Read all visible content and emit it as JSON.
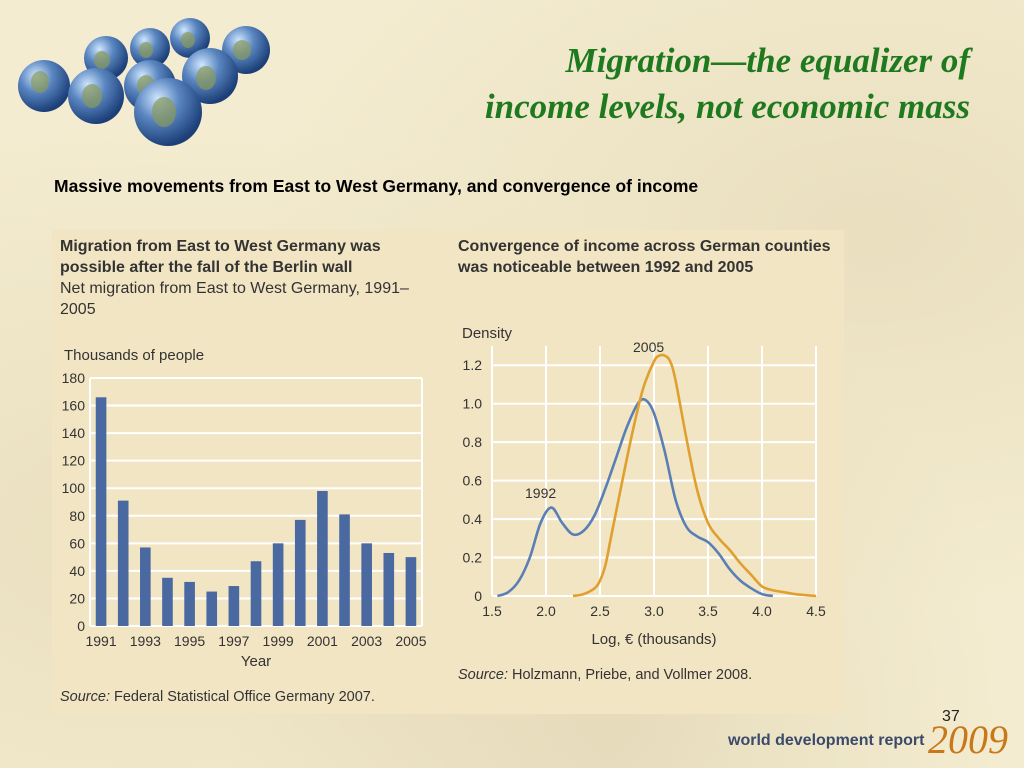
{
  "slide": {
    "title_line1": "Migration—the equalizer of",
    "title_line2": "income levels, not economic mass",
    "subtitle": "Massive movements from East to West Germany, and convergence of income",
    "page_number": "37",
    "footer_text": "world development report",
    "footer_year": "2009"
  },
  "left_panel": {
    "heading": "Migration from East to West Germany was possible after the fall of the Berlin wall",
    "subheading": "Net migration from East to West Germany, 1991–2005",
    "source_label": "Source:",
    "source_text": "Federal Statistical Office Germany 2007."
  },
  "right_panel": {
    "heading": "Convergence of income across German counties was noticeable between 1992 and 2005",
    "source_label": "Source:",
    "source_text": "Holzmann, Priebe, and Vollmer 2008."
  },
  "colors": {
    "bar": "#4a69a0",
    "line_1992": "#5a7fb5",
    "line_2005": "#e0a030",
    "title": "#1f7a1f"
  },
  "chart_data": [
    {
      "type": "bar",
      "ylabel": "Thousands of people",
      "xlabel": "Year",
      "categories": [
        "1991",
        "1992",
        "1993",
        "1994",
        "1995",
        "1996",
        "1997",
        "1998",
        "1999",
        "2000",
        "2001",
        "2002",
        "2003",
        "2004",
        "2005"
      ],
      "values": [
        166,
        91,
        57,
        35,
        32,
        25,
        29,
        47,
        60,
        77,
        98,
        81,
        60,
        53,
        50
      ],
      "x_tick_labels": [
        "1991",
        "1993",
        "1995",
        "1997",
        "1999",
        "2001",
        "2003",
        "2005"
      ],
      "y_ticks": [
        "0",
        "20",
        "40",
        "60",
        "80",
        "100",
        "120",
        "140",
        "160",
        "180"
      ],
      "ylim": [
        0,
        180
      ],
      "grid": true
    },
    {
      "type": "line",
      "ylabel": "Density",
      "xlabel": "Log, € (thousands)",
      "xlim": [
        1.5,
        4.5
      ],
      "ylim": [
        0,
        1.3
      ],
      "x_ticks": [
        "1.5",
        "2.0",
        "2.5",
        "3.0",
        "3.5",
        "4.0",
        "4.5"
      ],
      "y_ticks": [
        "0",
        "0.2",
        "0.4",
        "0.6",
        "0.8",
        "1.0",
        "1.2"
      ],
      "grid": true,
      "series": [
        {
          "name": "1992",
          "x": [
            1.55,
            1.65,
            1.75,
            1.85,
            1.95,
            2.05,
            2.15,
            2.25,
            2.35,
            2.45,
            2.55,
            2.65,
            2.75,
            2.85,
            2.92,
            3.0,
            3.1,
            3.2,
            3.3,
            3.4,
            3.5,
            3.6,
            3.7,
            3.8,
            3.9,
            4.0,
            4.1
          ],
          "values": [
            0.0,
            0.02,
            0.08,
            0.2,
            0.38,
            0.46,
            0.38,
            0.32,
            0.34,
            0.42,
            0.56,
            0.72,
            0.88,
            1.0,
            1.02,
            0.95,
            0.75,
            0.5,
            0.36,
            0.31,
            0.28,
            0.22,
            0.14,
            0.08,
            0.04,
            0.01,
            0.0
          ]
        },
        {
          "name": "2005",
          "x": [
            2.25,
            2.35,
            2.45,
            2.5,
            2.55,
            2.6,
            2.7,
            2.8,
            2.9,
            3.0,
            3.05,
            3.1,
            3.15,
            3.2,
            3.3,
            3.4,
            3.5,
            3.6,
            3.7,
            3.8,
            3.9,
            4.0,
            4.1,
            4.2,
            4.3,
            4.4,
            4.5
          ],
          "values": [
            0.0,
            0.01,
            0.04,
            0.08,
            0.16,
            0.3,
            0.58,
            0.85,
            1.08,
            1.22,
            1.25,
            1.25,
            1.22,
            1.12,
            0.82,
            0.55,
            0.38,
            0.3,
            0.24,
            0.17,
            0.11,
            0.05,
            0.03,
            0.02,
            0.01,
            0.005,
            0.0
          ]
        }
      ]
    }
  ]
}
